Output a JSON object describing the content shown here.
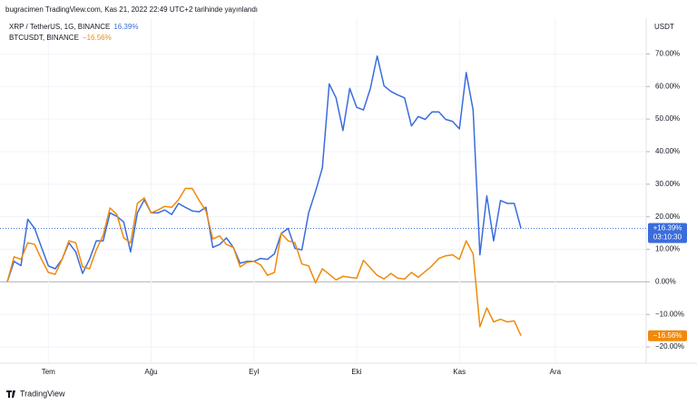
{
  "header": "bugracimen TradingView.com, Kas 21, 2022 22:49 UTC+2 tarihinde yayınlandı",
  "footer": "TradingView",
  "chart_data": {
    "type": "line",
    "axis_label": "USDT",
    "categories": [
      null,
      null,
      null,
      null,
      null,
      null,
      "Tem",
      null,
      null,
      null,
      null,
      null,
      null,
      null,
      null,
      null,
      null,
      null,
      null,
      null,
      null,
      "Ağu",
      null,
      null,
      null,
      null,
      null,
      null,
      null,
      null,
      null,
      null,
      null,
      null,
      null,
      null,
      "Eyl",
      null,
      null,
      null,
      null,
      null,
      null,
      null,
      null,
      null,
      null,
      null,
      null,
      null,
      null,
      "Eki",
      null,
      null,
      null,
      null,
      null,
      null,
      null,
      null,
      null,
      null,
      null,
      null,
      null,
      null,
      "Kas",
      null,
      null,
      null,
      null,
      null,
      null,
      null,
      null,
      null,
      null,
      null,
      null,
      null,
      "Ara",
      null,
      null,
      null,
      null,
      null,
      null,
      null,
      null,
      null,
      null,
      null,
      null,
      null
    ],
    "series": [
      {
        "name": "XRP / TetherUS, 1G, BINANCE",
        "color": "#3a6cdc",
        "legend_value": "16.39%",
        "tag": "+16.39%",
        "tag_time": "03:10:30",
        "values": [
          0,
          6.3,
          5,
          19.2,
          16.4,
          10.6,
          4.9,
          4,
          6.9,
          12,
          9.2,
          2.6,
          6.9,
          12.6,
          12.6,
          21.2,
          20.1,
          18.4,
          9.2,
          21.2,
          25.2,
          21.2,
          21.2,
          22.1,
          20.7,
          24.1,
          22.9,
          21.8,
          21.5,
          22.9,
          10.6,
          11.5,
          13.5,
          10.6,
          5.7,
          6.3,
          6.3,
          7.2,
          6.9,
          8.6,
          14.9,
          16.4,
          10.3,
          9.8,
          21.2,
          27.8,
          35,
          60.8,
          56.5,
          46.5,
          59.4,
          53.6,
          52.8,
          59.4,
          69.4,
          60.2,
          58.5,
          57.4,
          56.5,
          47.9,
          50.8,
          49.9,
          52.2,
          52.2,
          49.9,
          49.3,
          47,
          64.3,
          52.8,
          8.3,
          26.4,
          12.6,
          25,
          24.1,
          24.1,
          16.39,
          null,
          null,
          null,
          null,
          null,
          null,
          null,
          null,
          null,
          null,
          null,
          null,
          null,
          null,
          null,
          null,
          null,
          null
        ]
      },
      {
        "name": "BTCUSDT, BINANCE",
        "color": "#f08a0c",
        "legend_value": "−16.56%",
        "tag": "−16.56%",
        "values": [
          0,
          7.7,
          6.9,
          12,
          11.5,
          6.9,
          2.9,
          2.3,
          6.9,
          12.6,
          12,
          4.6,
          4,
          9.8,
          14.3,
          22.7,
          20.7,
          13.5,
          12,
          24.1,
          25.8,
          21.2,
          22.1,
          23.2,
          22.9,
          25.2,
          28.7,
          28.7,
          25,
          21.8,
          13.2,
          14.1,
          11.5,
          10.6,
          4.6,
          6,
          6.3,
          5.2,
          2,
          2.9,
          14.9,
          12.6,
          12,
          5.5,
          4.9,
          -0.3,
          4,
          2.3,
          0.6,
          1.7,
          1.4,
          1.1,
          6.6,
          4.3,
          2,
          0.9,
          2.6,
          1.1,
          0.9,
          2.9,
          1.4,
          3.2,
          4.9,
          7.2,
          8,
          8.3,
          6.9,
          12.6,
          8.6,
          -13.8,
          -8,
          -12.3,
          -11.5,
          -12.3,
          -12,
          -16.56,
          null,
          null,
          null,
          null,
          null,
          null,
          null,
          null,
          null,
          null,
          null,
          null,
          null,
          null,
          null,
          null,
          null,
          null
        ]
      }
    ],
    "ylim": [
      -25,
      81
    ],
    "yticks": [
      {
        "value": 70,
        "label": "70.00%"
      },
      {
        "value": 60,
        "label": "60.00%"
      },
      {
        "value": 50,
        "label": "50.00%"
      },
      {
        "value": 40,
        "label": "40.00%"
      },
      {
        "value": 30,
        "label": "30.00%"
      },
      {
        "value": 20,
        "label": "20.00%"
      },
      {
        "value": 10,
        "label": "10.00%"
      },
      {
        "value": 0,
        "label": "0.00%"
      },
      {
        "value": -10,
        "label": "−10.00%"
      },
      {
        "value": -20,
        "label": "−20.00%"
      }
    ],
    "grid": true
  }
}
